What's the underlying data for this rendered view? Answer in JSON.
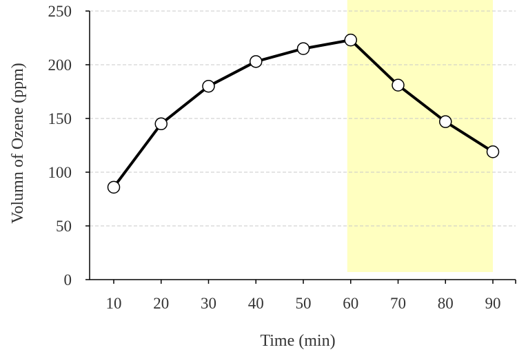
{
  "chart_data": {
    "type": "line",
    "title": "",
    "xlabel": "Time (min)",
    "ylabel": "Volumn of Ozene (ppm)",
    "x": [
      10,
      20,
      30,
      40,
      50,
      60,
      70,
      80,
      90
    ],
    "series": [
      {
        "values": [
          86,
          145,
          180,
          203,
          215,
          223,
          181,
          147,
          119
        ]
      }
    ],
    "xticks": [
      "10",
      "20",
      "30",
      "40",
      "50",
      "60",
      "70",
      "80",
      "90"
    ],
    "yticks": [
      "0",
      "50",
      "100",
      "150",
      "200",
      "250"
    ],
    "ylim": [
      0,
      250
    ],
    "grid": "horizontal dashed",
    "highlight": {
      "x_from": 60,
      "x_to": 90,
      "color": "#ffffc0"
    },
    "line_color": "#000000",
    "marker_fill": "#ffffff"
  }
}
